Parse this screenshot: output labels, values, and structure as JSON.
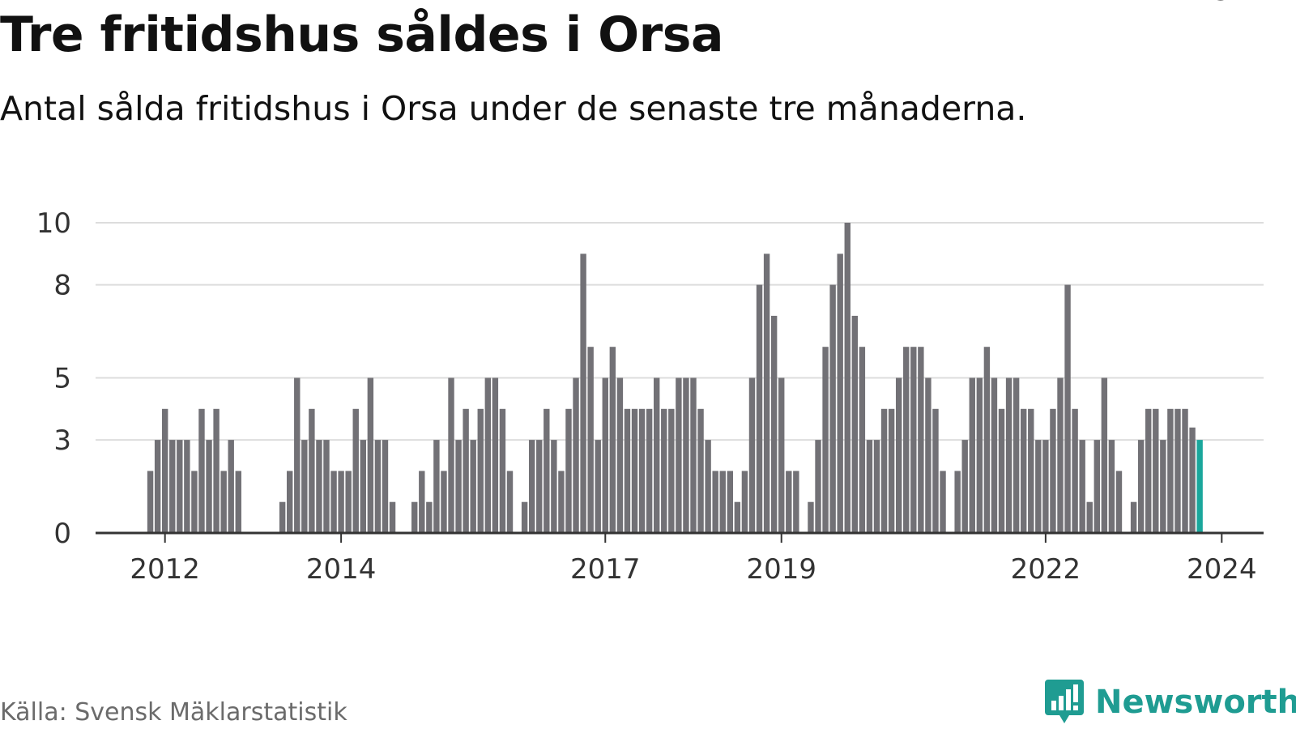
{
  "title": "Tre fritidshus såldes i Orsa",
  "subtitle": "Antal sålda fritidshus i Orsa under de senaste tre månaderna.",
  "source": "Källa: Svensk Mäklarstatistik",
  "brand": {
    "name": "Newsworthy"
  },
  "colors": {
    "bar": "#727176",
    "highlight": "#1aa79c",
    "grid": "#dddddd",
    "axis": "#333333",
    "brand": "#1f9c92"
  },
  "chart_data": {
    "type": "bar",
    "title": "Tre fritidshus såldes i Orsa",
    "ylim": [
      0,
      10
    ],
    "y_ticks": [
      0,
      3,
      5,
      8,
      10
    ],
    "y_tick_labels": [
      "0",
      "3",
      "5",
      "8",
      "10"
    ],
    "x_ticks": [
      "2012",
      "2014",
      "2017",
      "2019",
      "2022",
      "2024"
    ],
    "grid": true,
    "start_month": "2011-10",
    "unit": "months",
    "annotation": {
      "label": "3",
      "index": 147
    },
    "values": [
      0,
      2,
      3,
      4,
      3,
      3,
      3,
      2,
      4,
      3,
      4,
      2,
      3,
      2,
      0,
      0,
      0,
      0,
      0,
      1,
      2,
      5,
      3,
      4,
      3,
      3,
      2,
      2,
      2,
      4,
      3,
      5,
      3,
      3,
      1,
      0,
      0,
      1,
      2,
      1,
      3,
      2,
      5,
      3,
      4,
      3,
      4,
      5,
      5,
      4,
      2,
      0,
      1,
      3,
      3,
      4,
      3,
      2,
      4,
      5,
      9,
      6,
      3,
      5,
      6,
      5,
      4,
      4,
      4,
      4,
      5,
      4,
      4,
      5,
      5,
      5,
      4,
      3,
      2,
      2,
      2,
      1,
      2,
      5,
      8,
      9,
      7,
      5,
      2,
      2,
      0,
      1,
      3,
      6,
      8,
      9,
      10,
      7,
      6,
      3,
      3,
      4,
      4,
      5,
      6,
      6,
      6,
      5,
      4,
      2,
      0,
      2,
      3,
      5,
      5,
      6,
      5,
      4,
      5,
      5,
      4,
      4,
      3,
      3,
      4,
      5,
      8,
      4,
      3,
      1,
      3,
      5,
      3,
      2,
      0,
      1,
      3,
      4,
      4,
      3,
      4,
      4,
      4,
      3.4,
      3
    ]
  }
}
